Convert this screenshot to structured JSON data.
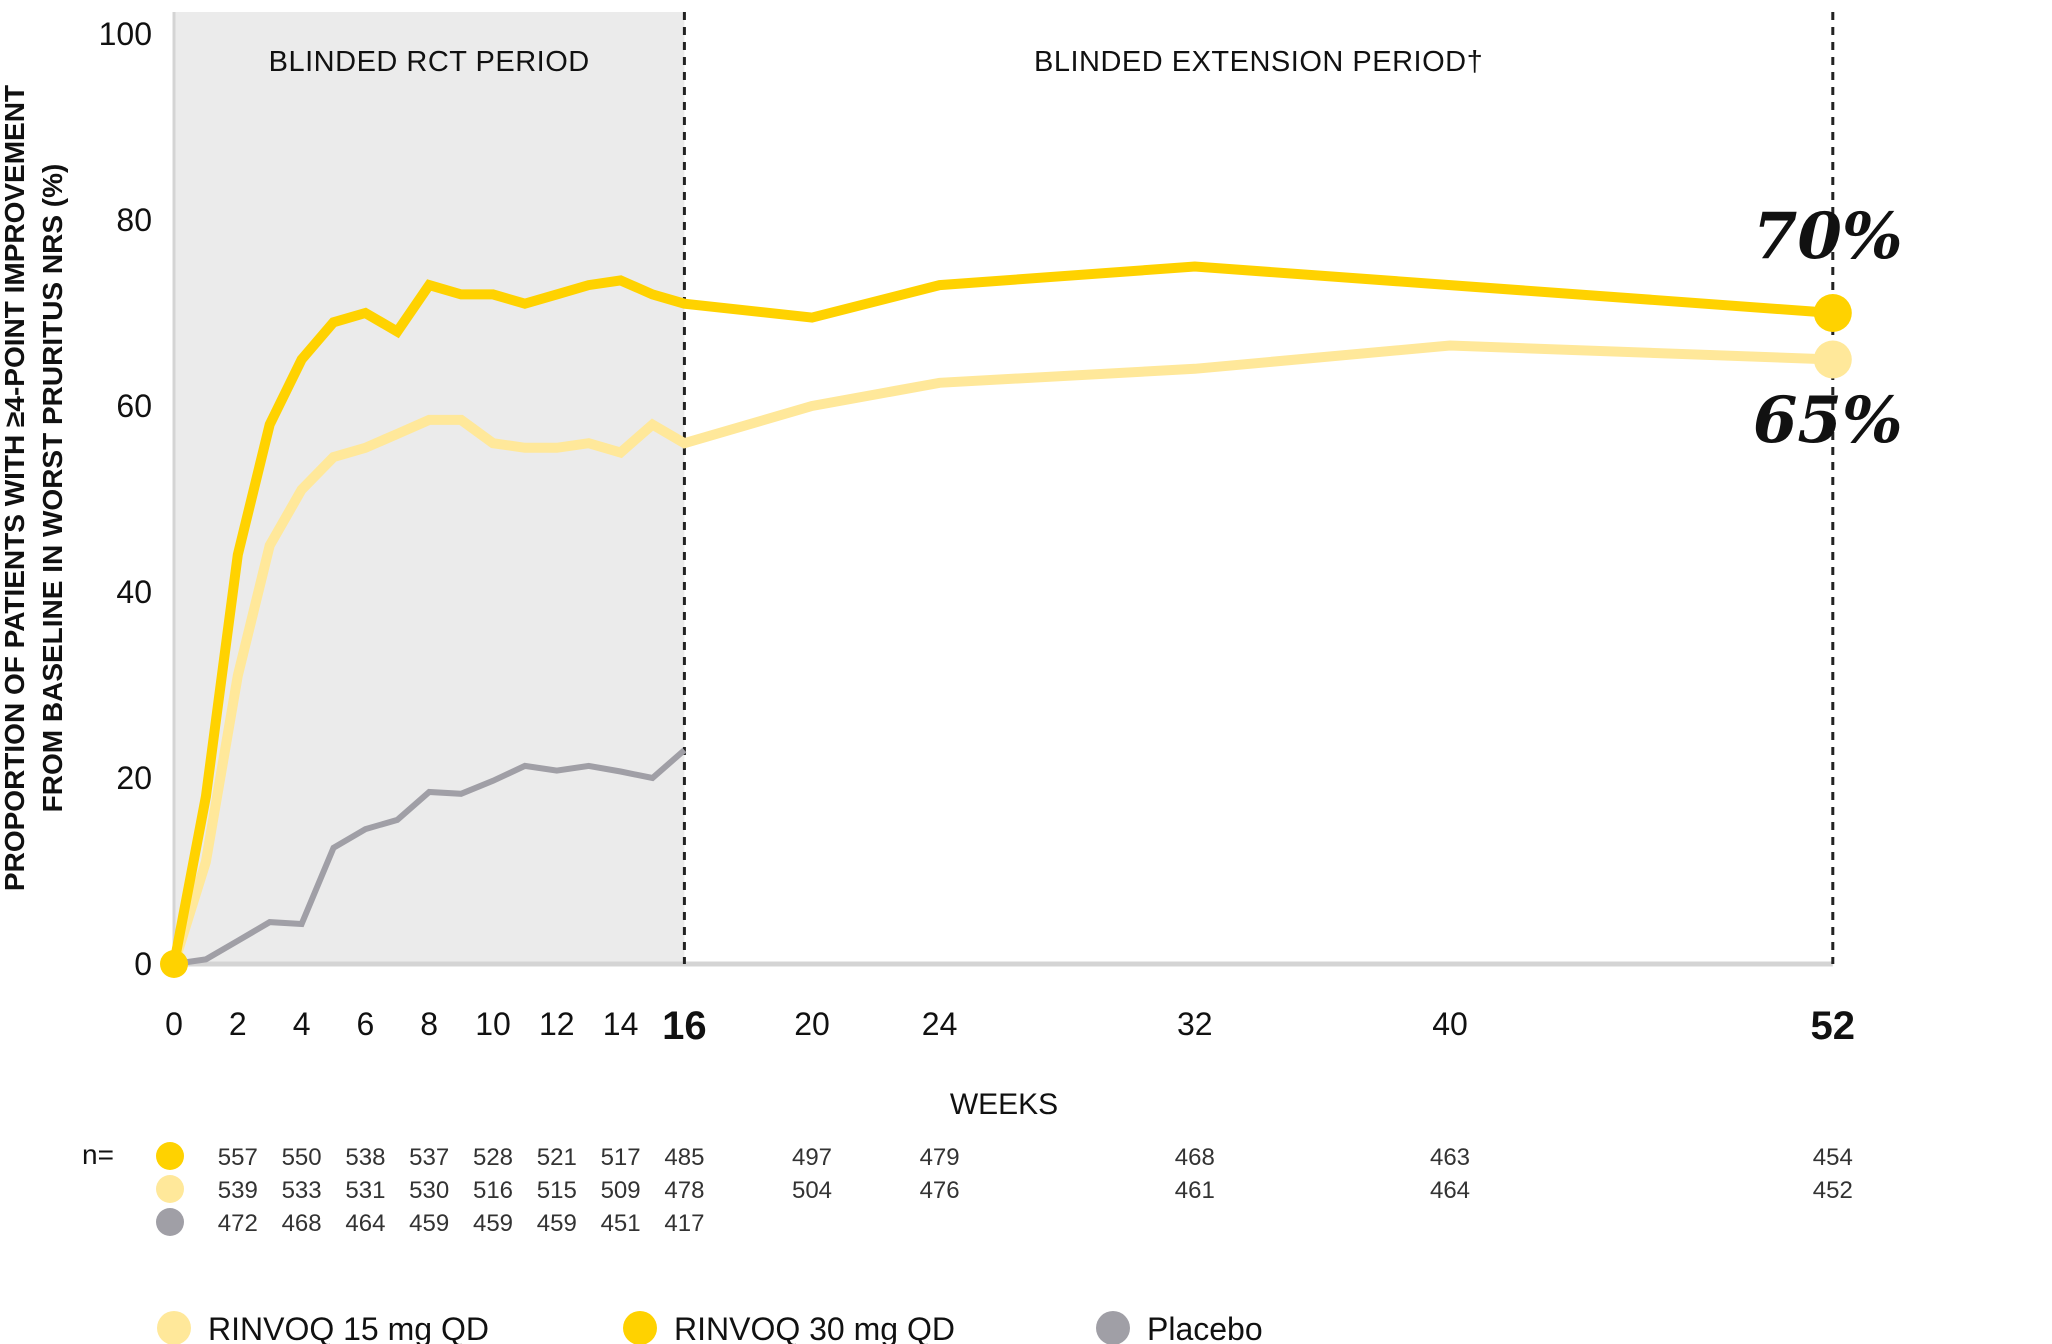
{
  "chart_data": {
    "type": "line",
    "ylabel_line1": "PROPORTION OF PATIENTS WITH ≥4-POINT IMPROVEMENT",
    "ylabel_line2": "FROM BASELINE IN WORST PRURITUS NRS (%)",
    "xlabel": "WEEKS",
    "ylim": [
      0,
      100
    ],
    "y_ticks": [
      0,
      20,
      40,
      60,
      80,
      100
    ],
    "x_ticks": [
      0,
      2,
      4,
      6,
      8,
      10,
      12,
      14,
      16,
      20,
      24,
      32,
      40,
      52
    ],
    "x_ticks_bold": [
      16,
      52
    ],
    "periods": [
      {
        "label": "BLINDED RCT PERIOD",
        "from": 0,
        "to": 16,
        "shaded": true
      },
      {
        "label": "BLINDED EXTENSION PERIOD†",
        "from": 16,
        "to": 52,
        "shaded": false
      }
    ],
    "series": [
      {
        "name": "RINVOQ 30 mg QD",
        "color": "#FFD200",
        "x": [
          0,
          1,
          2,
          3,
          4,
          5,
          6,
          7,
          8,
          9,
          10,
          11,
          12,
          13,
          14,
          15,
          16,
          20,
          24,
          32,
          40,
          52
        ],
        "y": [
          0,
          18,
          44,
          58,
          65,
          69,
          70,
          68,
          73,
          72,
          72,
          71,
          72,
          73,
          73.5,
          72,
          71,
          69.5,
          73,
          75,
          73,
          70
        ],
        "end_label": "70%",
        "n": [
          557,
          550,
          538,
          537,
          528,
          521,
          517,
          485,
          497,
          479,
          468,
          463,
          454
        ]
      },
      {
        "name": "RINVOQ 15 mg QD",
        "color": "#FFE89A",
        "x": [
          0,
          1,
          2,
          3,
          4,
          5,
          6,
          7,
          8,
          9,
          10,
          11,
          12,
          13,
          14,
          15,
          16,
          20,
          24,
          32,
          40,
          52
        ],
        "y": [
          0,
          11,
          31,
          45,
          51,
          54.5,
          55.5,
          57,
          58.5,
          58.5,
          56,
          55.5,
          55.5,
          56,
          55,
          58,
          56,
          60,
          62.5,
          64,
          66.5,
          65
        ],
        "end_label": "65%",
        "n": [
          539,
          533,
          531,
          530,
          516,
          515,
          509,
          478,
          504,
          476,
          461,
          464,
          452
        ]
      },
      {
        "name": "Placebo",
        "color": "#A09FA6",
        "x": [
          0,
          1,
          2,
          3,
          4,
          5,
          6,
          7,
          8,
          9,
          10,
          11,
          12,
          13,
          14,
          15,
          16
        ],
        "y": [
          0,
          0.5,
          2.5,
          4.5,
          4.3,
          12.5,
          14.5,
          15.5,
          18.5,
          18.3,
          19.7,
          21.3,
          20.8,
          21.3,
          20.7,
          20,
          23
        ],
        "n": [
          472,
          468,
          464,
          459,
          459,
          459,
          451,
          417
        ]
      }
    ],
    "n_label": "n=",
    "n_weeks_active": [
      2,
      4,
      6,
      8,
      10,
      12,
      14,
      16,
      20,
      24,
      32,
      40,
      52
    ],
    "n_weeks_placebo": [
      2,
      4,
      6,
      8,
      10,
      12,
      14,
      16
    ],
    "legend": [
      "RINVOQ 15 mg QD",
      "RINVOQ 30 mg QD",
      "Placebo"
    ]
  }
}
